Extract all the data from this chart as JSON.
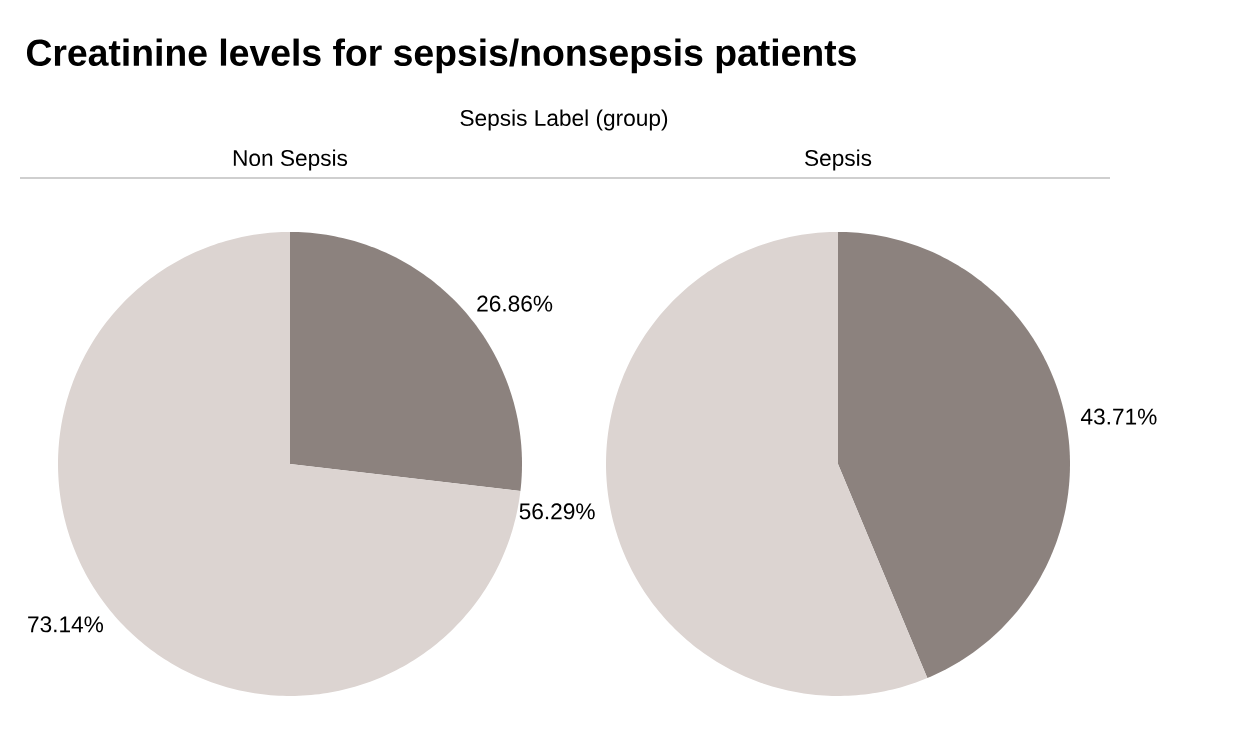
{
  "chart_data": [
    {
      "type": "pie",
      "title": "Non Sepsis",
      "categories": [
        null,
        null
      ],
      "values": [
        26.86,
        73.14
      ],
      "colors": [
        "#8c827e",
        "#dcd4d1"
      ],
      "value_labels": [
        "26.86%",
        "73.14%"
      ],
      "annotations": [
        "Creatinine levels for sepsis/nonsepsis patients",
        "Sepsis Label (group)"
      ]
    },
    {
      "type": "pie",
      "title": "Sepsis",
      "categories": [
        null,
        null
      ],
      "values": [
        43.71,
        56.29
      ],
      "colors": [
        "#8c827e",
        "#dcd4d1"
      ],
      "value_labels": [
        "43.71%",
        "56.29%"
      ]
    }
  ]
}
